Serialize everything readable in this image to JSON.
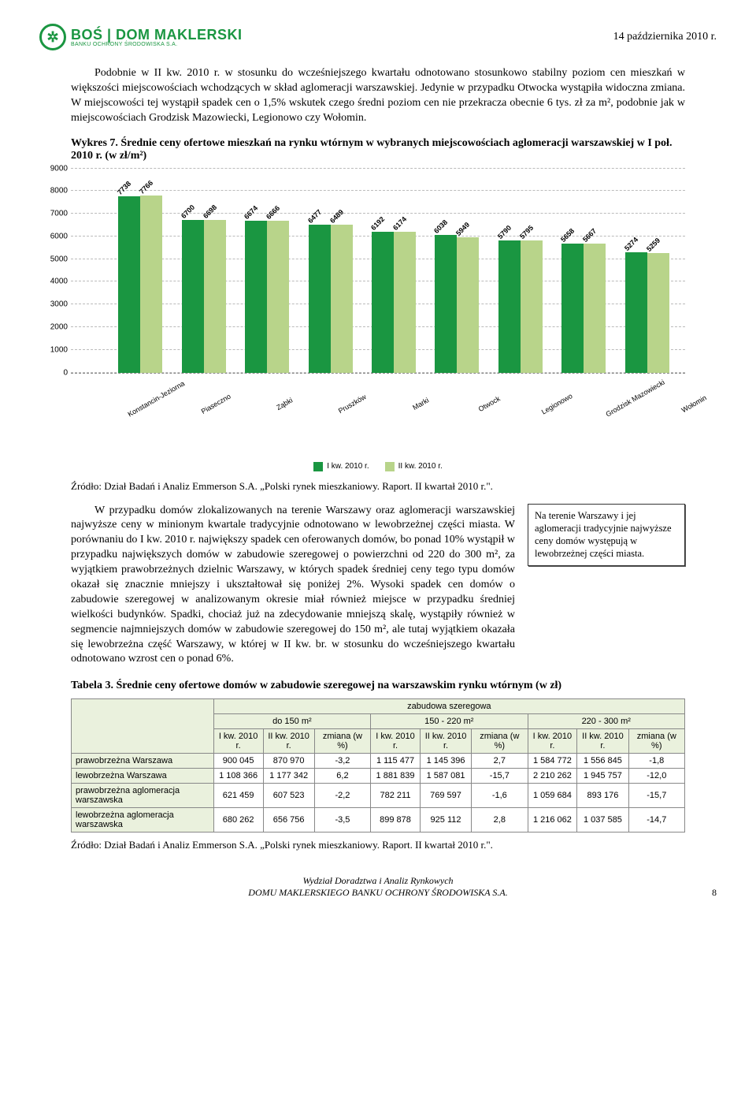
{
  "header": {
    "logo_main": "BOŚ | DOM MAKLERSKI",
    "logo_sub": "BANKU OCHRONY ŚRODOWISKA S.A.",
    "logo_mark": "✲",
    "date": "14 października 2010 r."
  },
  "para1": "Podobnie w II kw. 2010 r. w stosunku do wcześniejszego kwartału odnotowano stosunkowo stabilny poziom cen mieszkań w większości miejscowościach wchodzących w skład aglomeracji warszawskiej. Jedynie w przypadku Otwocka wystąpiła widoczna zmiana. W miejscowości tej wystąpił spadek cen o 1,5% wskutek czego średni poziom cen nie przekracza obecnie 6 tys. zł za m², podobnie jak w miejscowościach Grodzisk Mazowiecki, Legionowo czy Wołomin.",
  "chart": {
    "title_prefix": "Wykres 7.",
    "title": "Średnie ceny ofertowe mieszkań na rynku wtórnym w wybranych miejscowościach aglomeracji warszawskiej w I poł. 2010 r. (w zł/m²)",
    "type": "bar",
    "y_max": 9000,
    "y_step": 1000,
    "categories": [
      "Konstancin-Jeziorna",
      "Piaseczno",
      "Ząbki",
      "Pruszków",
      "Marki",
      "Otwock",
      "Legionowo",
      "Grodzisk Mazowiecki",
      "Wołomin"
    ],
    "series": [
      {
        "name": "I kw. 2010 r.",
        "color": "#1a9641",
        "values": [
          7738,
          6700,
          6674,
          6477,
          6192,
          6038,
          5790,
          5658,
          5274
        ]
      },
      {
        "name": "II kw. 2010 r.",
        "color": "#b8d48a",
        "values": [
          7766,
          6698,
          6666,
          6489,
          6174,
          5949,
          5795,
          5667,
          5259
        ]
      }
    ],
    "grid_color": "#bbbbbb",
    "axis_font_size": 10
  },
  "source1": "Źródło: Dział Badań i Analiz Emmerson S.A. „Polski rynek mieszkaniowy. Raport. II kwartał 2010 r.\".",
  "para2": "W przypadku domów zlokalizowanych na terenie Warszawy oraz aglomeracji warszawskiej najwyższe ceny w minionym kwartale tradycyjnie odnotowano w lewobrzeżnej części miasta. W porównaniu do I kw. 2010 r. największy spadek cen oferowanych domów, bo ponad 10% wystąpił w przypadku największych domów w zabudowie szeregowej o powierzchni od 220 do 300 m², za wyjątkiem prawobrzeżnych dzielnic Warszawy, w których spadek średniej ceny tego typu domów okazał się znacznie mniejszy i ukształtował się poniżej 2%. Wysoki spadek cen domów o zabudowie szeregowej w analizowanym okresie miał również miejsce w przypadku średniej wielkości budynków. Spadki, chociaż już na zdecydowanie mniejszą skalę, wystąpiły również w segmencie najmniejszych domów w zabudowie szeregowej do 150 m², ale tutaj wyjątkiem okazała się lewobrzeżna część Warszawy, w której w II kw. br. w stosunku do wcześniejszego kwartału odnotowano wzrost cen o ponad 6%.",
  "sidebox": "Na terenie Warszawy i jej aglomeracji tradycyjnie najwyższe ceny domów występują w lewobrzeżnej części miasta.",
  "table": {
    "title_prefix": "Tabela 3.",
    "title": "Średnie ceny ofertowe domów w zabudowie szeregowej na warszawskim rynku wtórnym (w zł)",
    "super_header": "zabudowa szeregowa",
    "group_headers": [
      "do 150 m²",
      "150 - 220 m²",
      "220 - 300 m²"
    ],
    "sub_headers": [
      "I kw. 2010 r.",
      "II kw. 2010 r.",
      "zmiana (w %)"
    ],
    "rows": [
      {
        "label": "prawobrzeżna Warszawa",
        "cells": [
          "900 045",
          "870 970",
          "-3,2",
          "1 115 477",
          "1 145 396",
          "2,7",
          "1 584 772",
          "1 556 845",
          "-1,8"
        ]
      },
      {
        "label": "lewobrzeżna Warszawa",
        "cells": [
          "1 108 366",
          "1 177 342",
          "6,2",
          "1 881 839",
          "1 587 081",
          "-15,7",
          "2 210 262",
          "1 945 757",
          "-12,0"
        ]
      },
      {
        "label": "prawobrzeżna aglomeracja warszawska",
        "cells": [
          "621 459",
          "607 523",
          "-2,2",
          "782 211",
          "769 597",
          "-1,6",
          "1 059 684",
          "893 176",
          "-15,7"
        ]
      },
      {
        "label": "lewobrzeżna aglomeracja warszawska",
        "cells": [
          "680 262",
          "656 756",
          "-3,5",
          "899 878",
          "925 112",
          "2,8",
          "1 216 062",
          "1 037 585",
          "-14,7"
        ]
      }
    ]
  },
  "source2": "Źródło: Dział Badań i Analiz Emmerson S.A. „Polski rynek mieszkaniowy. Raport. II kwartał 2010 r.\".",
  "footer": {
    "line1": "Wydział Doradztwa i Analiz Rynkowych",
    "line2": "DOMU MAKLERSKIEGO BANKU OCHRONY ŚRODOWISKA S.A.",
    "page": "8"
  }
}
